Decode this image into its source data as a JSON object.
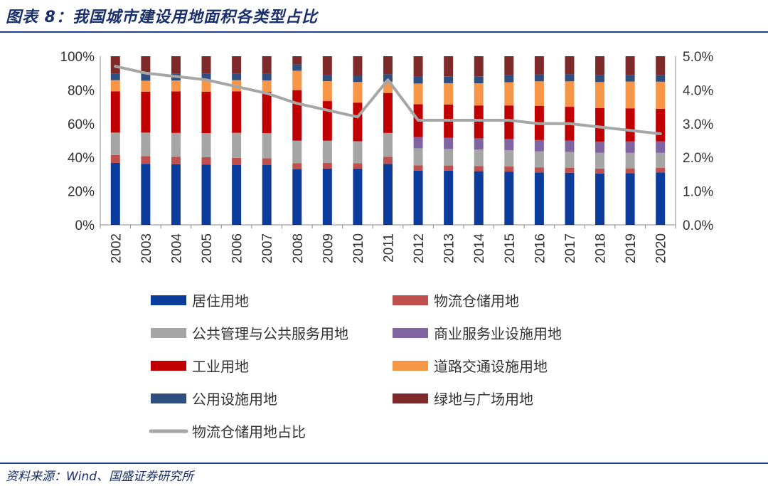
{
  "header": {
    "title": "图表 8：我国城市建设用地面积各类型占比"
  },
  "footer": {
    "source": "资料来源：Wind、国盛证券研究所"
  },
  "chart_data": {
    "type": "bar",
    "stacked": true,
    "categories": [
      "2002",
      "2003",
      "2004",
      "2005",
      "2006",
      "2007",
      "2008",
      "2009",
      "2010",
      "2011",
      "2012",
      "2013",
      "2014",
      "2015",
      "2016",
      "2017",
      "2018",
      "2019",
      "2020"
    ],
    "y_left": {
      "ylim": [
        0,
        100
      ],
      "ticks": [
        "0%",
        "20%",
        "40%",
        "60%",
        "80%",
        "100%"
      ]
    },
    "y_right": {
      "ylim": [
        0,
        5
      ],
      "ticks": [
        "0.0%",
        "1.0%",
        "2.0%",
        "3.0%",
        "4.0%",
        "5.0%"
      ]
    },
    "series": [
      {
        "name": "居住用地",
        "color": "#0b3c9c",
        "values": [
          36.7,
          36.2,
          36.0,
          35.8,
          35.6,
          35.6,
          32.9,
          33.4,
          33.4,
          36.1,
          32.2,
          32.1,
          31.8,
          31.6,
          31.1,
          30.9,
          30.5,
          30.7,
          31.1
        ]
      },
      {
        "name": "物流仓储用地",
        "color": "#c0504d",
        "values": [
          4.7,
          4.5,
          4.4,
          4.3,
          4.1,
          3.9,
          3.6,
          3.4,
          3.2,
          4.3,
          3.1,
          3.1,
          3.1,
          3.1,
          3.0,
          3.0,
          2.9,
          2.8,
          2.7
        ]
      },
      {
        "name": "公共管理与公共服务用地",
        "color": "#a5a5a5",
        "values": [
          13.3,
          14.0,
          14.1,
          14.3,
          14.9,
          14.9,
          13.4,
          13.1,
          13.0,
          14.1,
          10.1,
          9.8,
          9.7,
          9.6,
          9.5,
          9.4,
          9.3,
          9.2,
          8.9
        ]
      },
      {
        "name": "商业服务业设施用地",
        "color": "#8064a2",
        "values": [
          0,
          0,
          0,
          0,
          0,
          0,
          0,
          0,
          0,
          0,
          6.7,
          6.6,
          6.7,
          6.6,
          6.7,
          6.6,
          6.7,
          6.8,
          6.8
        ]
      },
      {
        "name": "工业用地",
        "color": "#c00000",
        "values": [
          24.5,
          24.3,
          24.6,
          24.5,
          24.6,
          24.4,
          30.0,
          23.5,
          22.9,
          23.7,
          19.4,
          19.8,
          19.5,
          19.9,
          20.3,
          20.1,
          19.8,
          19.6,
          19.3
        ]
      },
      {
        "name": "道路交通设施用地",
        "color": "#f79646",
        "values": [
          6.6,
          6.5,
          6.5,
          6.6,
          6.6,
          6.8,
          11.5,
          11.8,
          12.2,
          6.8,
          12.3,
          12.6,
          13.1,
          13.8,
          14.5,
          15.1,
          15.5,
          15.9,
          16.1
        ]
      },
      {
        "name": "公用设施用地",
        "color": "#2e4f7f",
        "values": [
          4.0,
          4.1,
          4.2,
          4.3,
          4.0,
          4.0,
          3.8,
          3.8,
          3.7,
          4.3,
          4.0,
          4.1,
          4.2,
          4.1,
          4.1,
          4.2,
          4.0,
          3.9,
          3.8
        ]
      },
      {
        "name": "绿地与广场用地",
        "color": "#7f2a2a",
        "values": [
          10.2,
          10.4,
          10.2,
          10.2,
          10.2,
          10.4,
          4.8,
          11.0,
          11.6,
          10.7,
          12.2,
          11.9,
          11.9,
          11.3,
          10.8,
          10.7,
          11.3,
          11.1,
          11.3
        ]
      }
    ],
    "line": {
      "name": "物流仓储用地占比",
      "color": "#a6a6a6",
      "axis": "right",
      "values": [
        4.7,
        4.5,
        4.4,
        4.3,
        4.1,
        3.9,
        3.6,
        3.4,
        3.2,
        4.3,
        3.1,
        3.1,
        3.1,
        3.1,
        3.0,
        3.0,
        2.9,
        2.8,
        2.7
      ]
    },
    "legend": {
      "position": "bottom",
      "columns": 2
    }
  }
}
